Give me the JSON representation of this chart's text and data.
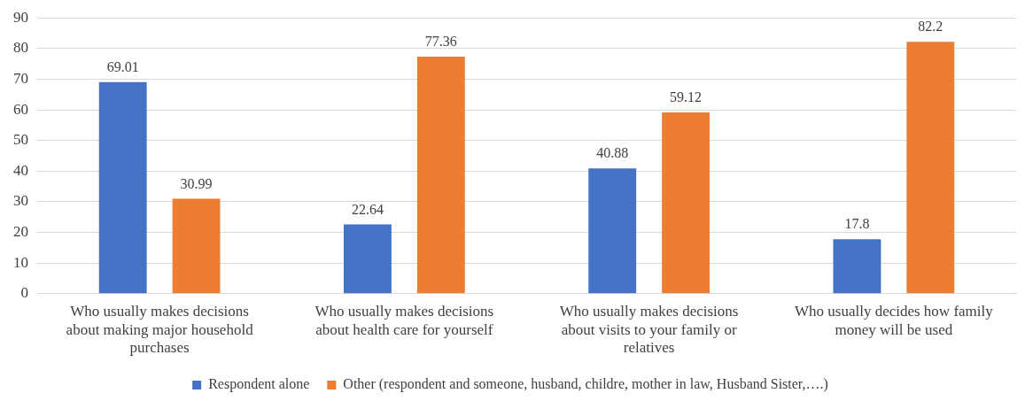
{
  "chart_data": {
    "type": "bar",
    "categories": [
      "Who usually makes decisions about making major household purchases",
      "Who usually makes decisions about health care for yourself",
      "Who usually makes decisions about visits to your family or relatives",
      "Who usually decides how family money will be used"
    ],
    "series": [
      {
        "name": "Respondent alone",
        "color": "#4472c4",
        "values": [
          69.01,
          22.64,
          40.88,
          17.8
        ]
      },
      {
        "name": "Other (respondent and someone, husband, childre, mother in law, Husband Sister,….)",
        "color": "#ed7d31",
        "values": [
          30.99,
          77.36,
          59.12,
          82.2
        ]
      }
    ],
    "ylim": [
      0,
      90
    ],
    "yticks": [
      0,
      10,
      20,
      30,
      40,
      50,
      60,
      70,
      80,
      90
    ],
    "grid": "y",
    "legend": "bottom",
    "data_labels": true
  }
}
